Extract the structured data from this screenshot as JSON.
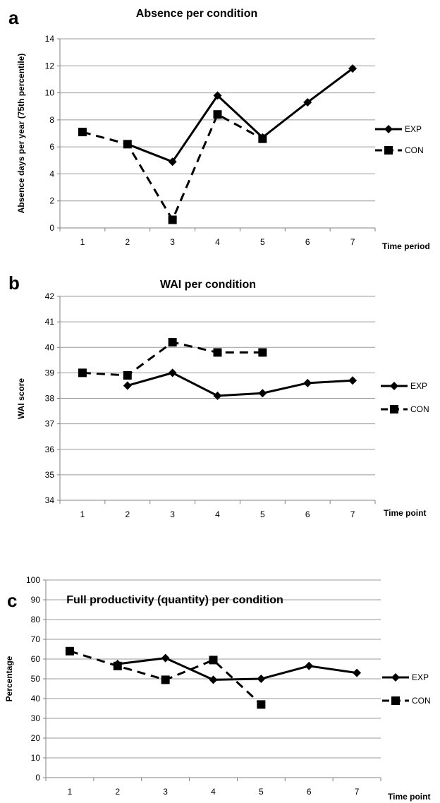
{
  "chart_data": [
    {
      "type": "line",
      "panel": "a",
      "title": "Absence per condition",
      "xlabel": "Time period",
      "ylabel": "Absence days per year (75th percentile)",
      "ylim": [
        0,
        14
      ],
      "yticks": [
        0,
        2,
        4,
        6,
        8,
        10,
        12,
        14
      ],
      "categories": [
        "1",
        "2",
        "3",
        "4",
        "5",
        "6",
        "7"
      ],
      "grid": true,
      "legend": "right",
      "series": [
        {
          "name": "EXP",
          "style": "solid",
          "marker": "diamond",
          "values": [
            null,
            6.2,
            4.9,
            9.8,
            6.7,
            9.3,
            11.8
          ]
        },
        {
          "name": "CON",
          "style": "dashed",
          "marker": "square",
          "values": [
            7.1,
            6.2,
            0.6,
            8.4,
            6.6,
            null,
            null
          ]
        }
      ]
    },
    {
      "type": "line",
      "panel": "b",
      "title": "WAI per condition",
      "xlabel": "Time point",
      "ylabel": "WAI score",
      "ylim": [
        34,
        42
      ],
      "yticks": [
        34,
        35,
        36,
        37,
        38,
        39,
        40,
        41,
        42
      ],
      "categories": [
        "1",
        "2",
        "3",
        "4",
        "5",
        "6",
        "7"
      ],
      "grid": true,
      "legend": "right",
      "series": [
        {
          "name": "EXP",
          "style": "solid",
          "marker": "diamond",
          "values": [
            null,
            38.5,
            39.0,
            38.1,
            38.2,
            38.6,
            38.7
          ]
        },
        {
          "name": "CON",
          "style": "dashed",
          "marker": "square",
          "values": [
            39.0,
            38.9,
            40.2,
            39.8,
            39.8,
            null,
            null
          ]
        }
      ]
    },
    {
      "type": "line",
      "panel": "c",
      "title": "Full productivity (quantity) per condition",
      "xlabel": "Time point",
      "ylabel": "Percentage",
      "ylim": [
        0,
        100
      ],
      "yticks": [
        0,
        10,
        20,
        30,
        40,
        50,
        60,
        70,
        80,
        90,
        100
      ],
      "categories": [
        "1",
        "2",
        "3",
        "4",
        "5",
        "6",
        "7"
      ],
      "grid": true,
      "legend": "right",
      "series": [
        {
          "name": "EXP",
          "style": "solid",
          "marker": "diamond",
          "values": [
            null,
            57.5,
            60.5,
            49.5,
            50.0,
            56.5,
            53.0
          ]
        },
        {
          "name": "CON",
          "style": "dashed",
          "marker": "square",
          "values": [
            64.0,
            56.5,
            49.5,
            59.5,
            37.0,
            null,
            null
          ]
        }
      ]
    }
  ]
}
